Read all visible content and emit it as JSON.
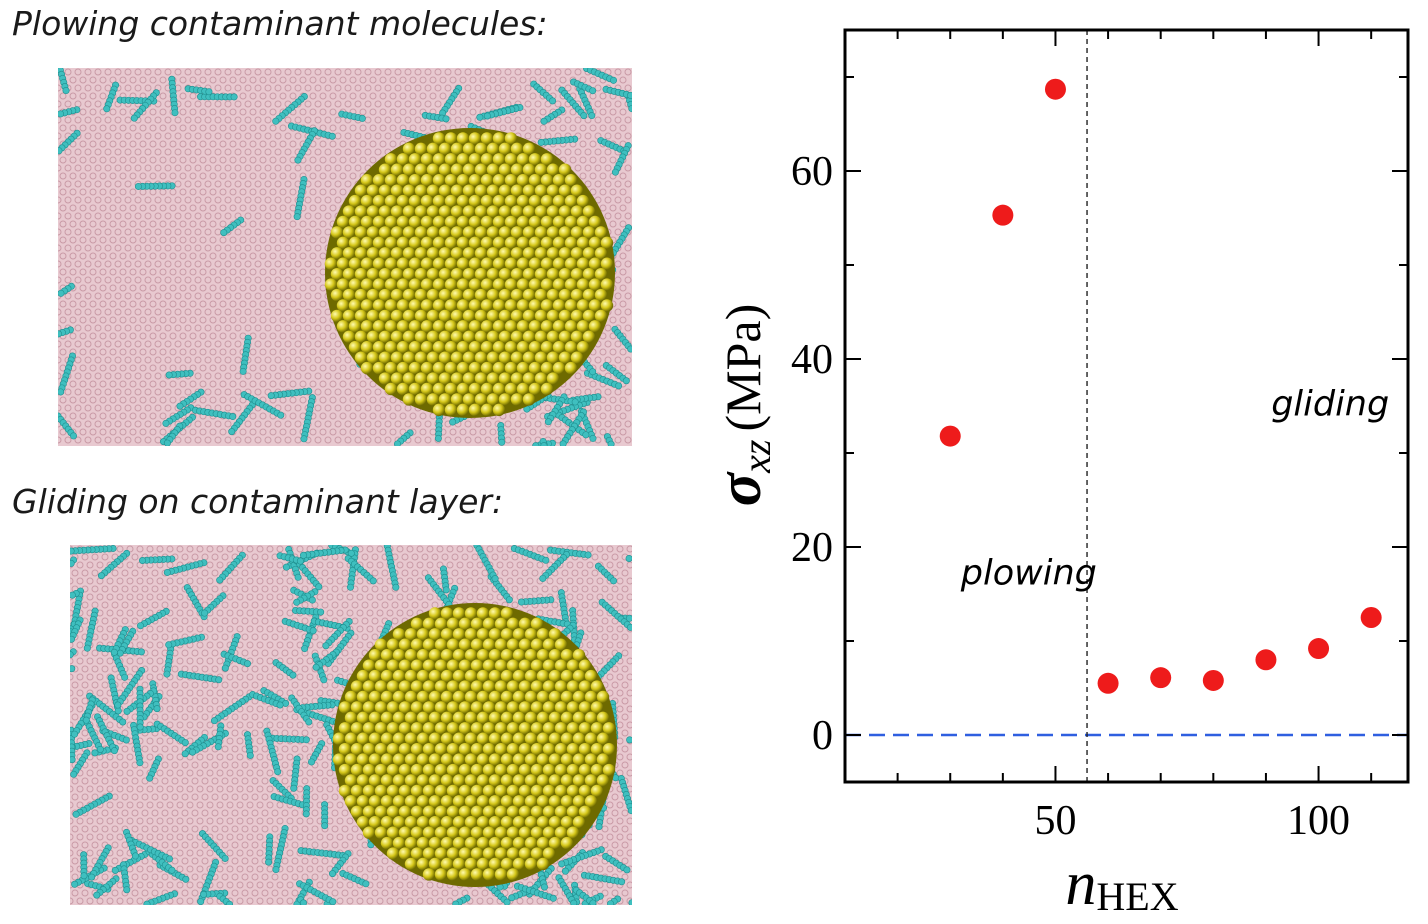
{
  "panels": {
    "top_title": "Plowing contaminant molecules:",
    "bottom_title": "Gliding on contaminant layer:"
  },
  "colors": {
    "graphene": "#e8c9d0",
    "graphene_line": "#c99aa6",
    "hexane": "#3fbfbf",
    "hexane_dark": "#1f8f8f",
    "gold": "#d6c81a",
    "gold_dark": "#6e6a00",
    "point": "#ee1b1b",
    "zero_line": "#2f5fe0"
  },
  "chart_data": {
    "type": "scatter",
    "xlabel_main": "n",
    "xlabel_sub": "HEX",
    "ylabel_main": "σ",
    "ylabel_sub": "xz",
    "ylabel_unit": "(MPa)",
    "xlim": [
      10,
      117
    ],
    "ylim": [
      -5,
      75
    ],
    "xticks": [
      50,
      100
    ],
    "yticks": [
      0,
      20,
      40,
      60
    ],
    "x_minor_step": 10,
    "y_minor_step": 10,
    "points": [
      {
        "x": 30,
        "y": 31.8
      },
      {
        "x": 40,
        "y": 55.3
      },
      {
        "x": 50,
        "y": 68.7
      },
      {
        "x": 60,
        "y": 5.5
      },
      {
        "x": 70,
        "y": 6.1
      },
      {
        "x": 80,
        "y": 5.8
      },
      {
        "x": 90,
        "y": 8.0
      },
      {
        "x": 100,
        "y": 9.2
      },
      {
        "x": 110,
        "y": 12.5
      }
    ],
    "divider_x": 56,
    "zero_line_y": 0,
    "annotations": [
      {
        "text": "plowing",
        "x": 32,
        "y": 16
      },
      {
        "text": "gliding",
        "x": 91,
        "y": 34
      }
    ]
  }
}
